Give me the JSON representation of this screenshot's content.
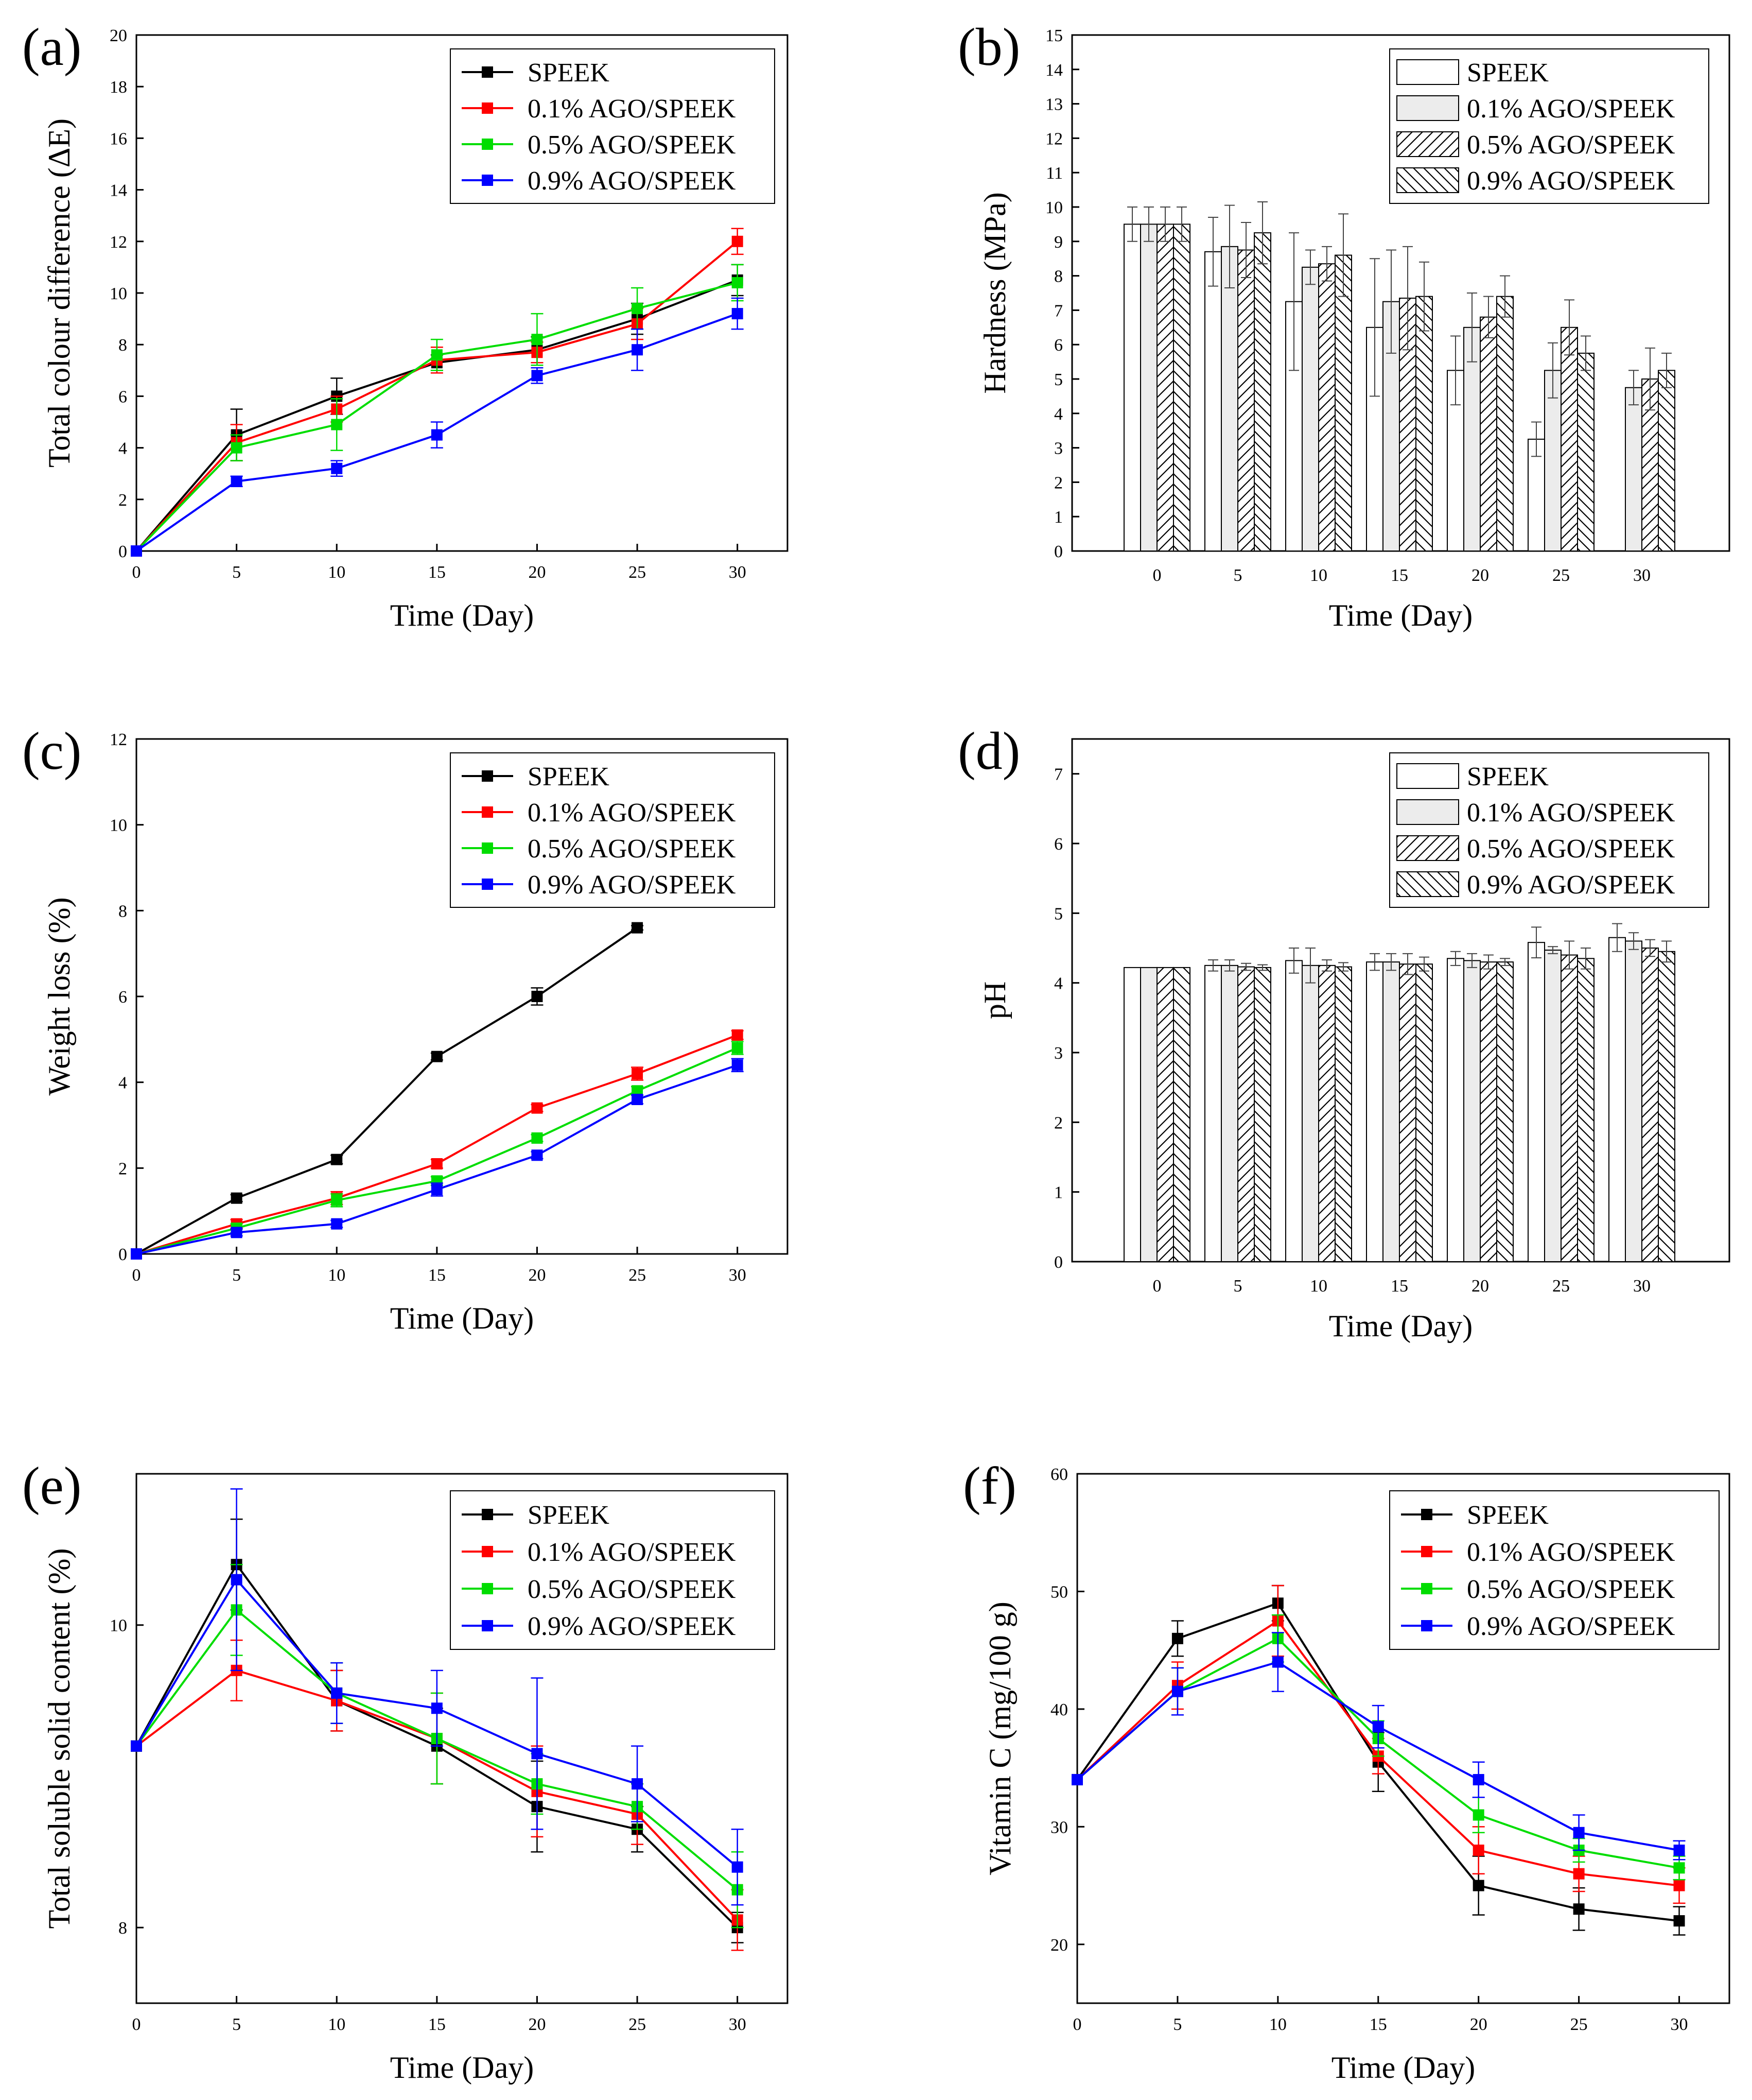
{
  "figure": {
    "panels": [
      "a",
      "b",
      "c",
      "d",
      "e",
      "f"
    ]
  },
  "chart_data": [
    {
      "id": "a",
      "panel_label": "(a)",
      "type": "line",
      "xlabel": "Time (Day)",
      "ylabel": "Total colour difference (ΔE)",
      "x": [
        0,
        5,
        10,
        15,
        20,
        25,
        30
      ],
      "xticks": [
        0,
        5,
        10,
        15,
        20,
        25,
        30
      ],
      "xlim": [
        0,
        32.5
      ],
      "yticks": [
        0,
        2,
        4,
        6,
        8,
        10,
        12,
        14,
        16,
        18,
        20
      ],
      "ylim": [
        0,
        20
      ],
      "legend_position": "top-right",
      "series": [
        {
          "name": "SPEEK",
          "color": "#000000",
          "values": [
            0,
            4.5,
            6.0,
            7.3,
            7.8,
            9.0,
            10.5
          ],
          "errors": [
            0,
            1.0,
            0.7,
            0.3,
            0.5,
            0.6,
            0.6
          ]
        },
        {
          "name": "0.1%  AGO/SPEEK",
          "color": "#ff0000",
          "values": [
            0,
            4.2,
            5.5,
            7.4,
            7.7,
            8.8,
            12.0
          ],
          "errors": [
            0,
            0.7,
            0.5,
            0.5,
            0.4,
            0.6,
            0.5
          ]
        },
        {
          "name": "0.5%  AGO/SPEEK",
          "color": "#00dd00",
          "values": [
            0,
            4.0,
            4.9,
            7.6,
            8.2,
            9.4,
            10.4
          ],
          "errors": [
            0,
            0.5,
            1.0,
            0.6,
            1.0,
            0.8,
            0.7
          ]
        },
        {
          "name": "0.9%  AGO/SPEEK",
          "color": "#0000ff",
          "values": [
            0,
            2.7,
            3.2,
            4.5,
            6.8,
            7.8,
            9.2
          ],
          "errors": [
            0,
            0.2,
            0.3,
            0.5,
            0.3,
            0.8,
            0.6
          ]
        }
      ]
    },
    {
      "id": "b",
      "panel_label": "(b)",
      "type": "bar",
      "xlabel": "Time (Day)",
      "ylabel": "Hardness (MPa)",
      "categories": [
        "0",
        "5",
        "10",
        "15",
        "20",
        "25",
        "30"
      ],
      "xticks": [
        "0",
        "5",
        "10",
        "15",
        "20",
        "25",
        "30"
      ],
      "yticks": [
        0,
        1,
        2,
        3,
        4,
        5,
        6,
        7,
        8,
        9,
        10,
        11,
        12,
        13,
        14,
        15
      ],
      "ylim": [
        0,
        15
      ],
      "legend_position": "top-right",
      "series": [
        {
          "name": "SPEEK",
          "pattern": "none",
          "values": [
            9.5,
            8.7,
            7.25,
            6.5,
            5.25,
            3.25,
            null
          ],
          "errors": [
            0.5,
            1.0,
            2.0,
            2.0,
            1.0,
            0.5,
            0
          ]
        },
        {
          "name": "0.1%  AGO/SPEEK",
          "pattern": "gray",
          "values": [
            9.5,
            8.85,
            8.25,
            7.25,
            6.5,
            5.25,
            4.75
          ],
          "errors": [
            0.5,
            1.2,
            0.5,
            1.5,
            1.0,
            0.8,
            0.5
          ]
        },
        {
          "name": "0.5%  AGO/SPEEK",
          "pattern": "diag-right",
          "values": [
            9.5,
            8.75,
            8.35,
            7.35,
            6.8,
            6.5,
            5.0
          ],
          "errors": [
            0.5,
            0.8,
            0.5,
            1.5,
            0.6,
            0.8,
            0.9
          ]
        },
        {
          "name": "0.9%  AGO/SPEEK",
          "pattern": "diag-left",
          "values": [
            9.5,
            9.25,
            8.6,
            7.4,
            7.4,
            5.75,
            5.25
          ],
          "errors": [
            0.5,
            0.9,
            1.2,
            1.0,
            0.6,
            0.5,
            0.5
          ]
        }
      ]
    },
    {
      "id": "c",
      "panel_label": "(c)",
      "type": "line",
      "xlabel": "Time (Day)",
      "ylabel": "Weight loss  (%)",
      "x": [
        0,
        5,
        10,
        15,
        20,
        25,
        30
      ],
      "xticks": [
        0,
        5,
        10,
        15,
        20,
        25,
        30
      ],
      "xlim": [
        0,
        32.5
      ],
      "yticks": [
        0,
        2,
        4,
        6,
        8,
        10,
        12
      ],
      "ylim": [
        0,
        12
      ],
      "legend_position": "top-right",
      "series": [
        {
          "name": "SPEEK",
          "color": "#000000",
          "values": [
            0,
            1.3,
            2.2,
            4.6,
            6.0,
            7.6,
            null
          ],
          "errors": [
            0,
            0.08,
            0.1,
            0.08,
            0.2,
            0.05,
            0
          ]
        },
        {
          "name": "0.1%  AGO/SPEEK",
          "color": "#ff0000",
          "values": [
            0,
            0.7,
            1.3,
            2.1,
            3.4,
            4.2,
            5.1
          ],
          "errors": [
            0,
            0.1,
            0.15,
            0.1,
            0.08,
            0.15,
            0.1
          ]
        },
        {
          "name": "0.5%  AGO/SPEEK",
          "color": "#00dd00",
          "values": [
            0,
            0.6,
            1.25,
            1.7,
            2.7,
            3.8,
            4.8
          ],
          "errors": [
            0,
            0.1,
            0.15,
            0.1,
            0.08,
            0.1,
            0.15
          ]
        },
        {
          "name": "0.9%  AGO/SPEEK",
          "color": "#0000ff",
          "values": [
            0,
            0.5,
            0.7,
            1.5,
            2.3,
            3.6,
            4.4
          ],
          "errors": [
            0,
            0.08,
            0.08,
            0.15,
            0.08,
            0.1,
            0.15
          ]
        }
      ]
    },
    {
      "id": "d",
      "panel_label": "(d)",
      "type": "bar",
      "xlabel": "Time (Day)",
      "ylabel": "pH",
      "categories": [
        "0",
        "5",
        "10",
        "15",
        "20",
        "25",
        "30"
      ],
      "xticks": [
        "0",
        "5",
        "10",
        "15",
        "20",
        "25",
        "30"
      ],
      "yticks": [
        0,
        1,
        2,
        3,
        4,
        5,
        6,
        7
      ],
      "ylim": [
        0,
        7.5
      ],
      "legend_position": "top-right",
      "series": [
        {
          "name": "SPEEK",
          "pattern": "none",
          "values": [
            4.22,
            4.25,
            4.32,
            4.3,
            4.35,
            4.58,
            4.65
          ],
          "errors": [
            0,
            0.08,
            0.18,
            0.12,
            0.1,
            0.22,
            0.2
          ]
        },
        {
          "name": "0.1%  AGO/SPEEK",
          "pattern": "gray",
          "values": [
            4.22,
            4.25,
            4.25,
            4.3,
            4.32,
            4.47,
            4.6
          ],
          "errors": [
            0,
            0.08,
            0.25,
            0.12,
            0.1,
            0.05,
            0.12
          ]
        },
        {
          "name": "0.5%  AGO/SPEEK",
          "pattern": "diag-right",
          "values": [
            4.22,
            4.23,
            4.25,
            4.27,
            4.3,
            4.4,
            4.5
          ],
          "errors": [
            0,
            0.05,
            0.08,
            0.15,
            0.1,
            0.2,
            0.12
          ]
        },
        {
          "name": "0.9%  AGO/SPEEK",
          "pattern": "diag-left",
          "values": [
            4.22,
            4.22,
            4.23,
            4.27,
            4.3,
            4.35,
            4.45
          ],
          "errors": [
            0,
            0.04,
            0.06,
            0.1,
            0.05,
            0.15,
            0.15
          ]
        }
      ]
    },
    {
      "id": "e",
      "panel_label": "(e)",
      "type": "line",
      "xlabel": "Time (Day)",
      "ylabel": "Total soluble solid content (%)",
      "x": [
        0,
        5,
        10,
        15,
        20,
        25,
        30
      ],
      "xticks": [
        0,
        5,
        10,
        15,
        20,
        25,
        30
      ],
      "xlim": [
        0,
        32.5
      ],
      "yticks": [
        8,
        10
      ],
      "ylim": [
        7.5,
        11
      ],
      "legend_position": "top-right",
      "series": [
        {
          "name": "SPEEK",
          "color": "#000000",
          "values": [
            9.2,
            10.4,
            9.5,
            9.2,
            8.8,
            8.65,
            8.0
          ],
          "errors": [
            0,
            0.3,
            0.2,
            0.25,
            0.3,
            0.15,
            0.1
          ]
        },
        {
          "name": "0.1%  AGO/SPEEK",
          "color": "#ff0000",
          "values": [
            9.2,
            9.7,
            9.5,
            9.25,
            8.9,
            8.75,
            8.05
          ],
          "errors": [
            0,
            0.2,
            0.2,
            0.3,
            0.3,
            0.2,
            0.2
          ]
        },
        {
          "name": "0.5%  AGO/SPEEK",
          "color": "#00dd00",
          "values": [
            9.2,
            10.1,
            9.55,
            9.25,
            8.95,
            8.8,
            8.25
          ],
          "errors": [
            0,
            0.3,
            0.2,
            0.3,
            0.2,
            0.15,
            0.25
          ]
        },
        {
          "name": "0.9%  AGO/SPEEK",
          "color": "#0000ff",
          "values": [
            9.2,
            10.3,
            9.55,
            9.45,
            9.15,
            8.95,
            8.4
          ],
          "errors": [
            0,
            0.6,
            0.2,
            0.25,
            0.5,
            0.25,
            0.25
          ]
        }
      ]
    },
    {
      "id": "f",
      "panel_label": "(f)",
      "type": "line",
      "xlabel": "Time (Day)",
      "ylabel": "Vitamin C (mg/100 g)",
      "x": [
        0,
        5,
        10,
        15,
        20,
        25,
        30
      ],
      "xticks": [
        0,
        5,
        10,
        15,
        20,
        25,
        30
      ],
      "xlim": [
        0,
        32.5
      ],
      "yticks": [
        20,
        30,
        40,
        50,
        60
      ],
      "ylim": [
        15,
        60
      ],
      "legend_position": "top-right",
      "series": [
        {
          "name": "SPEEK",
          "color": "#000000",
          "values": [
            34,
            46,
            49,
            35.5,
            25,
            23,
            22
          ],
          "errors": [
            0,
            1.5,
            1.5,
            2.5,
            2.5,
            1.8,
            1.2
          ]
        },
        {
          "name": "0.1%  AGO/SPEEK",
          "color": "#ff0000",
          "values": [
            34,
            42,
            47.5,
            36,
            28,
            26,
            25
          ],
          "errors": [
            0,
            2.0,
            3.0,
            1.5,
            2.0,
            1.5,
            1.5
          ]
        },
        {
          "name": "0.5%  AGO/SPEEK",
          "color": "#00dd00",
          "values": [
            34,
            41.5,
            46,
            37.5,
            31,
            28,
            26.5
          ],
          "errors": [
            0,
            2.0,
            2.0,
            1.5,
            1.5,
            1.0,
            1.0
          ]
        },
        {
          "name": "0.9%  AGO/SPEEK",
          "color": "#0000ff",
          "values": [
            34,
            41.5,
            44,
            38.5,
            34,
            29.5,
            28
          ],
          "errors": [
            0,
            2.0,
            2.5,
            1.8,
            1.5,
            1.5,
            0.8
          ]
        }
      ]
    }
  ]
}
